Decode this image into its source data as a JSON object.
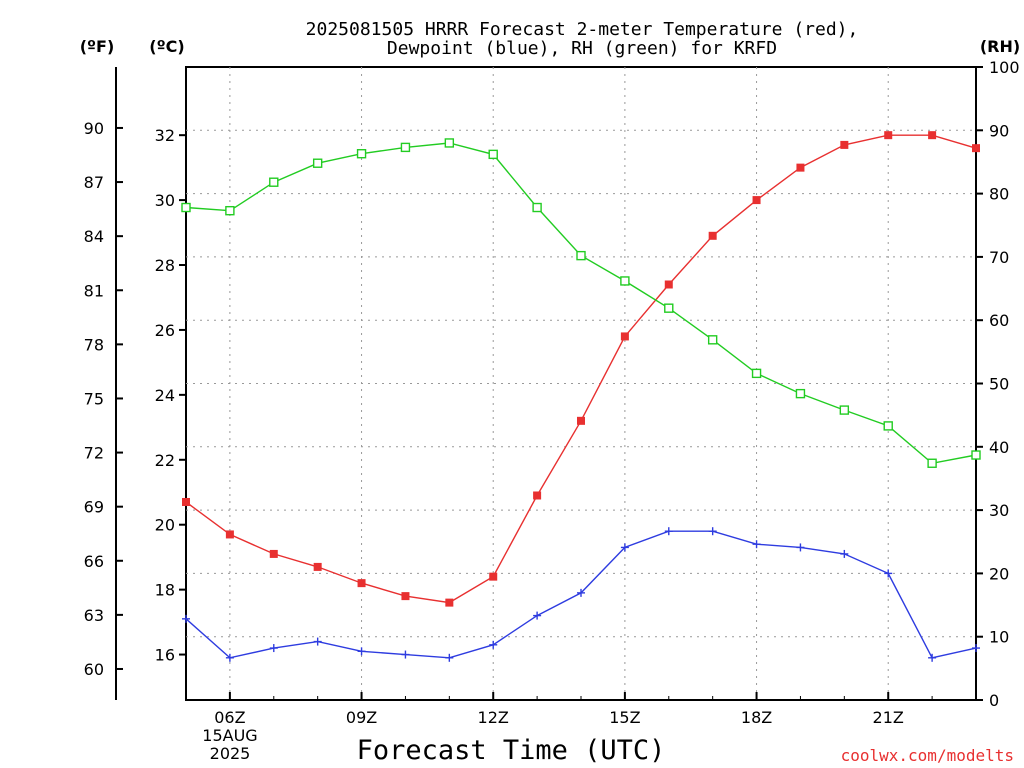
{
  "chart_data": {
    "type": "line",
    "title_lines": [
      "2025081505 HRRR Forecast 2-meter Temperature (red),",
      "Dewpoint (blue), RH (green) for KRFD"
    ],
    "xlabel": "Forecast Time (UTC)",
    "watermark": "coolwx.com/modelts",
    "x_tick_labels": [
      "06Z",
      "09Z",
      "12Z",
      "15Z",
      "18Z",
      "21Z"
    ],
    "x_date_labels": [
      "15AUG",
      "2025"
    ],
    "x_hours": [
      5,
      6,
      7,
      8,
      9,
      10,
      11,
      12,
      13,
      14,
      15,
      16,
      17,
      18,
      19,
      20,
      21,
      22,
      23
    ],
    "xlim": [
      5,
      23
    ],
    "grid": true,
    "axes": {
      "fahrenheit": {
        "label": "(ºF)",
        "ticks": [
          "90",
          "87",
          "84",
          "81",
          "78",
          "75",
          "72",
          "69",
          "66",
          "63",
          "60"
        ]
      },
      "celsius": {
        "label": "(ºC)",
        "ticks": [
          "32",
          "30",
          "28",
          "26",
          "24",
          "22",
          "20",
          "18",
          "16"
        ],
        "ylim": [
          14.6,
          34.1
        ]
      },
      "rh": {
        "label": "(RH)",
        "ticks": [
          "100",
          "90",
          "80",
          "70",
          "60",
          "50",
          "40",
          "30",
          "20",
          "10",
          "0"
        ],
        "ylim": [
          0,
          100
        ]
      }
    },
    "series": [
      {
        "key": "temperature",
        "axis": "celsius",
        "color": "#e83030",
        "marker": "filled-square",
        "values": [
          20.7,
          19.7,
          19.1,
          18.7,
          18.2,
          17.8,
          17.6,
          18.4,
          20.9,
          23.2,
          25.8,
          27.4,
          28.9,
          30.0,
          31.0,
          31.7,
          32.0,
          32.0,
          31.6
        ]
      },
      {
        "key": "dewpoint",
        "axis": "celsius",
        "color": "#2e3ce0",
        "marker": "plus",
        "values": [
          17.1,
          15.9,
          16.2,
          16.4,
          16.1,
          16.0,
          15.9,
          16.3,
          17.2,
          17.9,
          19.3,
          19.8,
          19.8,
          19.4,
          19.3,
          19.1,
          18.5,
          15.9,
          16.2
        ]
      },
      {
        "key": "rh",
        "axis": "rh",
        "color": "#22cc22",
        "marker": "open-square",
        "values": [
          77.8,
          77.3,
          81.8,
          84.8,
          86.3,
          87.3,
          88.0,
          86.2,
          77.8,
          70.2,
          66.2,
          61.9,
          56.9,
          51.6,
          48.4,
          45.8,
          43.3,
          37.4,
          38.7
        ]
      }
    ]
  }
}
